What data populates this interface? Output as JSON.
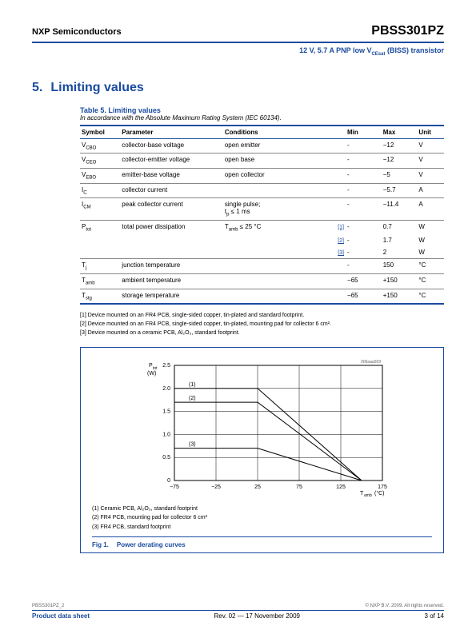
{
  "header": {
    "company": "NXP Semiconductors",
    "part": "PBSS301PZ",
    "subtitle": "12 V, 5.7 A PNP low V_CEsat (BISS) transistor"
  },
  "section": {
    "num": "5.",
    "title": "Limiting values"
  },
  "table": {
    "title": "Table 5.    Limiting values",
    "note": "In accordance with the Absolute Maximum Rating System (IEC 60134).",
    "headers": {
      "symbol": "Symbol",
      "parameter": "Parameter",
      "conditions": "Conditions",
      "min": "Min",
      "max": "Max",
      "unit": "Unit"
    },
    "rows": [
      {
        "sym": "V_CBO",
        "param": "collector-base voltage",
        "cond": "open emitter",
        "ref": "",
        "min": "-",
        "max": "−12",
        "unit": "V"
      },
      {
        "sym": "V_CEO",
        "param": "collector-emitter voltage",
        "cond": "open base",
        "ref": "",
        "min": "-",
        "max": "−12",
        "unit": "V"
      },
      {
        "sym": "V_EBO",
        "param": "emitter-base voltage",
        "cond": "open collector",
        "ref": "",
        "min": "-",
        "max": "−5",
        "unit": "V"
      },
      {
        "sym": "I_C",
        "param": "collector current",
        "cond": "",
        "ref": "",
        "min": "-",
        "max": "−5.7",
        "unit": "A"
      },
      {
        "sym": "I_CM",
        "param": "peak collector current",
        "cond": "single pulse;\nt_p ≤ 1 ms",
        "ref": "",
        "min": "-",
        "max": "−11.4",
        "unit": "A"
      },
      {
        "sym": "P_tot",
        "param": "total power dissipation",
        "cond": "T_amb ≤ 25 °C",
        "ref": "[1]",
        "min": "-",
        "max": "0.7",
        "unit": "W"
      },
      {
        "sym": "",
        "param": "",
        "cond": "",
        "ref": "[2]",
        "min": "-",
        "max": "1.7",
        "unit": "W"
      },
      {
        "sym": "",
        "param": "",
        "cond": "",
        "ref": "[3]",
        "min": "-",
        "max": "2",
        "unit": "W"
      },
      {
        "sym": "T_j",
        "param": "junction temperature",
        "cond": "",
        "ref": "",
        "min": "-",
        "max": "150",
        "unit": "°C"
      },
      {
        "sym": "T_amb",
        "param": "ambient temperature",
        "cond": "",
        "ref": "",
        "min": "−65",
        "max": "+150",
        "unit": "°C"
      },
      {
        "sym": "T_stg",
        "param": "storage temperature",
        "cond": "",
        "ref": "",
        "min": "−65",
        "max": "+150",
        "unit": "°C"
      }
    ]
  },
  "footnotes": [
    "[1]   Device mounted on an FR4 PCB, single-sided copper, tin-plated and standard footprint.",
    "[2]   Device mounted on an FR4 PCB, single-sided copper, tin-plated, mounting pad for collector 6 cm².",
    "[3]   Device mounted on a ceramic PCB, Al₂O₃, standard footprint."
  ],
  "chart": {
    "id": "006aaa569",
    "ylabel": "P_tot\n(W)",
    "xlabel": "T_amb (°C)",
    "xlim": [
      -75,
      175
    ],
    "ylim": [
      0,
      2.5
    ],
    "xticks": [
      -75,
      -25,
      25,
      75,
      125,
      175
    ],
    "yticks": [
      0,
      0.5,
      1.0,
      1.5,
      2.0,
      2.5
    ],
    "lines": [
      {
        "label": "(1)",
        "points": [
          [
            -75,
            2.0
          ],
          [
            25,
            2.0
          ],
          [
            150,
            0
          ]
        ]
      },
      {
        "label": "(2)",
        "points": [
          [
            -75,
            1.7
          ],
          [
            25,
            1.7
          ],
          [
            150,
            0
          ]
        ]
      },
      {
        "label": "(3)",
        "points": [
          [
            -75,
            0.7
          ],
          [
            25,
            0.7
          ],
          [
            150,
            0
          ]
        ]
      }
    ],
    "line_color": "#000000",
    "grid_color": "#000000",
    "background": "#ffffff",
    "legend": [
      "(1)   Ceramic PCB, Al₂O₃, standard footprint",
      "(2)   FR4 PCB, mounting pad for collector 6 cm²",
      "(3)   FR4 PCB, standard footprint"
    ],
    "caption_fig": "Fig 1.",
    "caption_text": "Power derating curves"
  },
  "footer": {
    "tiny_left": "PBSS301PZ_2",
    "tiny_right": "© NXP B.V. 2009. All rights reserved.",
    "left": "Product data sheet",
    "mid": "Rev. 02 — 17 November 2009",
    "right": "3 of 14"
  }
}
